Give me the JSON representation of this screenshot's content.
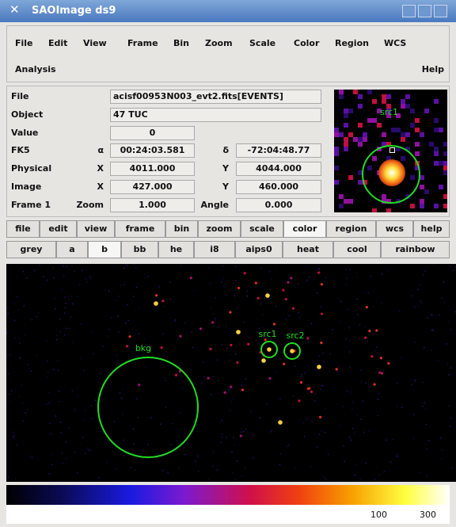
{
  "window": {
    "title": "SAOImage ds9"
  },
  "menu": {
    "items": [
      "File",
      "Edit",
      "View",
      "Frame",
      "Bin",
      "Zoom",
      "Scale",
      "Color",
      "Region",
      "WCS"
    ],
    "analysis": "Analysis",
    "help": "Help"
  },
  "info": {
    "file": {
      "label": "File",
      "value": "acisf00953N003_evt2.fits[EVENTS]"
    },
    "object": {
      "label": "Object",
      "value": "47 TUC"
    },
    "value": {
      "label": "Value",
      "value": "0"
    },
    "fk5": {
      "label": "FK5",
      "x_label": "α",
      "x": "00:24:03.581",
      "y_label": "δ",
      "y": "-72:04:48.77"
    },
    "physical": {
      "label": "Physical",
      "x_label": "X",
      "x": "4011.000",
      "y_label": "Y",
      "y": "4044.000"
    },
    "image": {
      "label": "Image",
      "x_label": "X",
      "x": "427.000",
      "y_label": "Y",
      "y": "460.000"
    },
    "frame": {
      "label": "Frame 1",
      "x_label": "Zoom",
      "x": "1.000",
      "y_label": "Angle",
      "y": "0.000"
    }
  },
  "magnifier": {
    "label": "src1"
  },
  "buttons": {
    "main": [
      "file",
      "edit",
      "view",
      "frame",
      "bin",
      "zoom",
      "scale",
      "color",
      "region",
      "wcs",
      "help"
    ],
    "colors": [
      "grey",
      "a",
      "b",
      "bb",
      "he",
      "i8",
      "aips0",
      "heat",
      "cool",
      "rainbow"
    ]
  },
  "regions": [
    "bkg",
    "src1",
    "src2"
  ],
  "colorbar": {
    "ticks": [
      "100",
      "300"
    ]
  }
}
